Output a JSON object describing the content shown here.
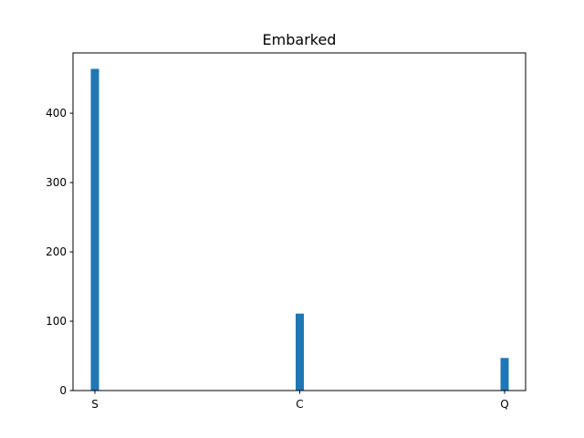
{
  "chart_data": {
    "type": "bar",
    "title": "Embarked",
    "xlabel": "",
    "ylabel": "",
    "categories": [
      "S",
      "C",
      "Q"
    ],
    "values": [
      464,
      111,
      47
    ],
    "ylim": [
      0,
      487
    ],
    "yticks": [
      0,
      100,
      200,
      300,
      400
    ],
    "grid": false,
    "legend": "none",
    "bar_color": "#1f77b4"
  }
}
